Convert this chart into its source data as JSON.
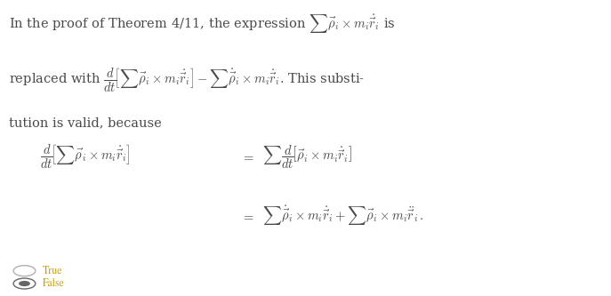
{
  "background_color": "#ffffff",
  "text_color": "#4a4a4a",
  "line1": "In the proof of Theorem 4/11, the expression $\\sum \\vec{\\rho}_i \\times m_i\\dot{\\vec{r}}_i$ is",
  "line2": "replaced with $\\dfrac{d}{dt}\\!\\left[\\sum \\vec{\\rho}_i \\times m_i\\dot{\\vec{r}}_i\\right] - \\sum \\dot{\\vec{\\rho}}_i \\times m_i\\dot{\\vec{r}}_i$. This substi-",
  "line3": "tution is valid, because",
  "eq_lhs": "$\\dfrac{d}{dt}\\!\\left[\\sum \\vec{\\rho}_i \\times m_i\\dot{\\vec{r}}_i\\right]$",
  "eq_eq1": "$=$",
  "eq_rhs1": "$\\sum \\dfrac{d}{dt}\\!\\left[\\vec{\\rho}_i \\times m_i\\dot{\\vec{r}}_i\\right]$",
  "eq_eq2": "$=$",
  "eq_rhs2": "$\\sum \\dot{\\vec{\\rho}}_i \\times m_i\\dot{\\vec{r}}_i + \\sum \\vec{\\rho}_i \\times m_i\\ddot{\\vec{r}}_i\\,.$",
  "true_label": "True",
  "false_label": "False",
  "true_color": "#c8a000",
  "false_color": "#c8a000",
  "radio_unsel_edge": "#b0b0b0",
  "radio_sel_edge": "#666666",
  "radio_sel_fill": "#666666"
}
